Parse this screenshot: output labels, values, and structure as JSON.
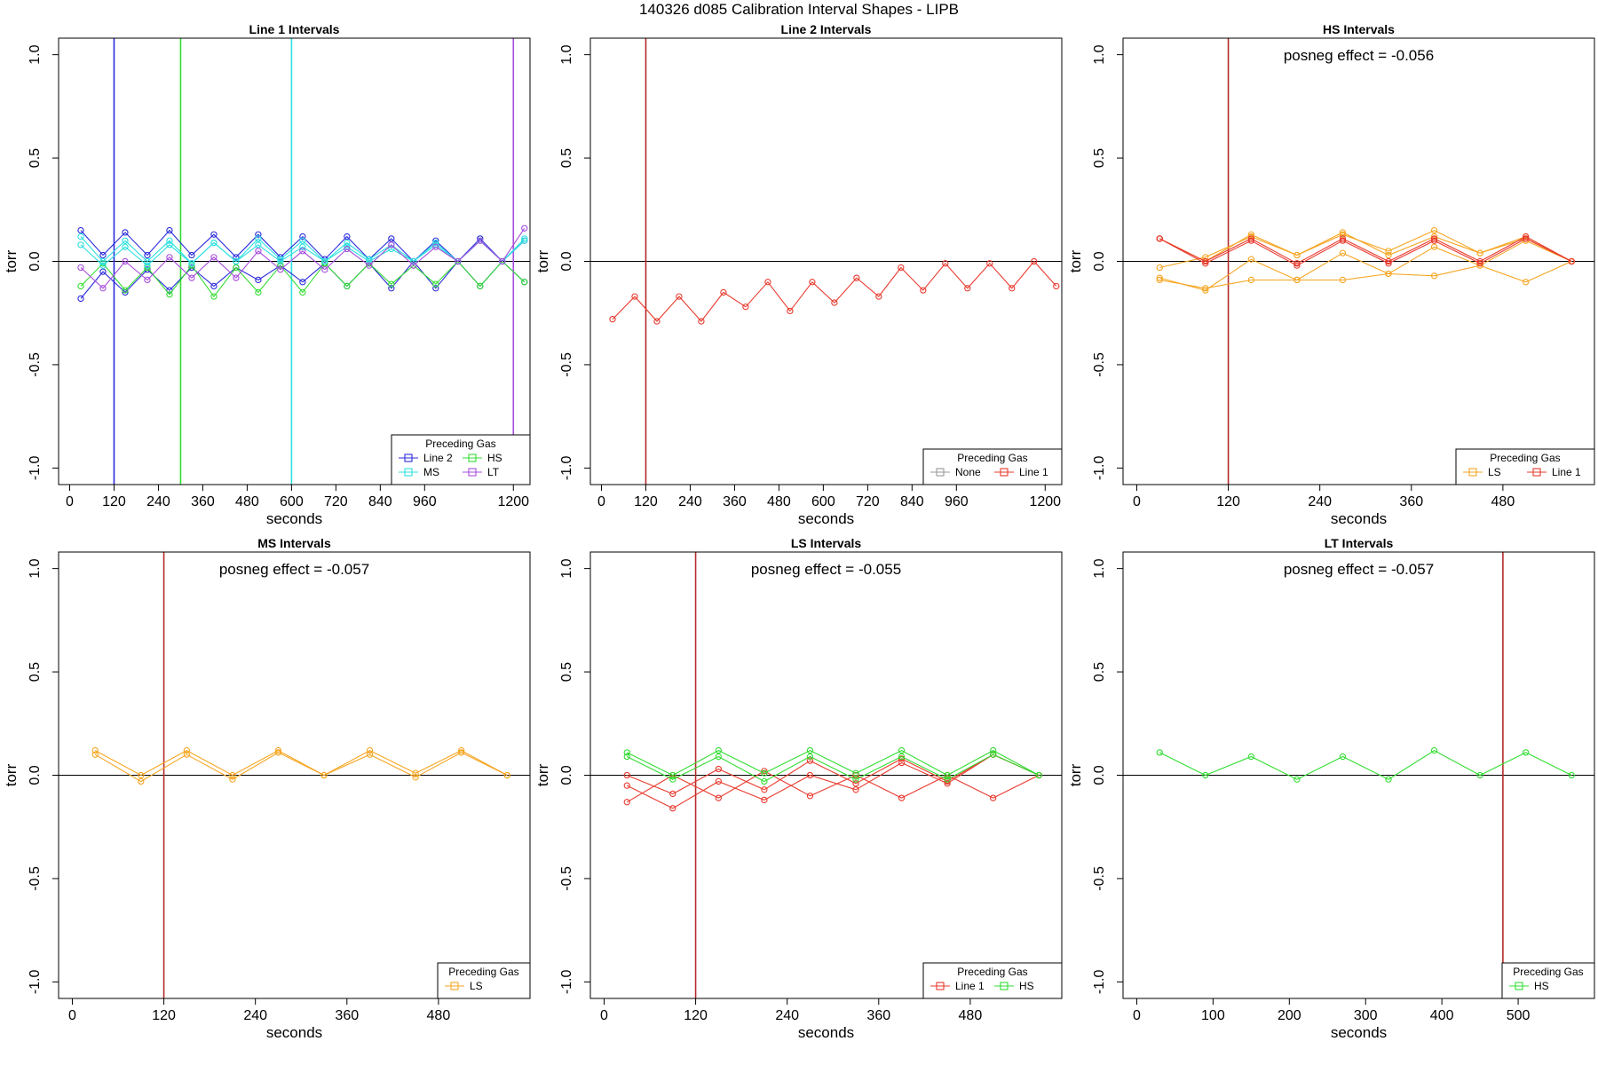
{
  "figure": {
    "title": "140326   d085   Calibration Interval Shapes - LIPB"
  },
  "colors": {
    "Line 2": "#2b2bdc",
    "HS": "#33dd33",
    "MS": "#2ee0e0",
    "LT": "#a64ddc",
    "Line 1": "#e83a2e",
    "LS": "#f5a623",
    "None": "#999999",
    "vline_red": "#b52a2a",
    "zero": "#000000"
  },
  "chart_data": [
    {
      "type": "line",
      "title": "Line 1 Intervals",
      "xlabel": "seconds",
      "ylabel": "torr",
      "xlim": [
        -30,
        1245
      ],
      "ylim": [
        -1.08,
        1.08
      ],
      "xticks": [
        0,
        120,
        240,
        360,
        480,
        600,
        720,
        840,
        960,
        1200
      ],
      "yticks": [
        -1.0,
        -0.5,
        0.0,
        0.5,
        1.0
      ],
      "annotation": "",
      "vlines": [
        {
          "x": 120,
          "color": "Line 2"
        },
        {
          "x": 300,
          "color": "HS"
        },
        {
          "x": 600,
          "color": "MS"
        },
        {
          "x": 1200,
          "color": "LT"
        }
      ],
      "legend": {
        "title": "Preceding Gas",
        "position": "bottom-right",
        "columns": 2,
        "entries": [
          "Line 2",
          "HS",
          "MS",
          "LT"
        ]
      },
      "series": [
        {
          "color": "Line 2",
          "x": [
            30,
            90,
            150,
            210,
            270,
            330,
            390,
            450,
            510,
            570,
            630,
            690,
            750,
            810,
            870,
            930,
            990,
            1050,
            1110,
            1170,
            1230
          ],
          "y": [
            0.15,
            0.03,
            0.14,
            0.03,
            0.15,
            0.03,
            0.13,
            0.02,
            0.13,
            0.02,
            0.12,
            0.01,
            0.12,
            0.01,
            0.11,
            0.0,
            0.1,
            0.0,
            0.11,
            0.0,
            0.1
          ]
        },
        {
          "color": "Line 2",
          "x": [
            30,
            90,
            150,
            210,
            270,
            330,
            390,
            450,
            510,
            570,
            630,
            690,
            750,
            810,
            870,
            930,
            990,
            1050,
            1110,
            1170,
            1230
          ],
          "y": [
            -0.18,
            -0.05,
            -0.15,
            -0.04,
            -0.14,
            -0.03,
            -0.12,
            -0.03,
            -0.09,
            -0.02,
            -0.1,
            -0.01,
            -0.12,
            -0.01,
            -0.13,
            0.0,
            -0.13,
            0.0,
            -0.12,
            0.0,
            -0.1
          ]
        },
        {
          "color": "HS",
          "x": [
            30,
            90,
            150,
            210,
            270,
            330,
            390,
            450,
            510,
            570,
            630,
            690,
            750,
            810,
            870,
            930,
            990,
            1050,
            1110,
            1170,
            1230
          ],
          "y": [
            -0.12,
            -0.01,
            -0.14,
            -0.03,
            -0.16,
            -0.02,
            -0.17,
            -0.03,
            -0.15,
            -0.02,
            -0.15,
            -0.01,
            -0.12,
            -0.01,
            -0.11,
            -0.02,
            -0.11,
            0.0,
            -0.12,
            0.0,
            -0.1
          ]
        },
        {
          "color": "MS",
          "x": [
            30,
            90,
            150,
            210,
            270,
            330,
            390,
            450,
            510,
            570,
            630,
            690,
            750,
            810,
            870,
            930,
            990,
            1050,
            1110,
            1170,
            1230
          ],
          "y": [
            0.08,
            -0.02,
            0.07,
            -0.02,
            0.08,
            -0.01,
            0.09,
            0.0,
            0.08,
            0.0,
            0.07,
            0.0,
            0.07,
            0.0,
            0.06,
            0.0,
            0.09,
            0.0,
            0.1,
            0.0,
            0.11
          ]
        },
        {
          "color": "MS",
          "x": [
            30,
            90,
            150,
            210,
            270,
            330,
            390,
            450,
            510,
            570,
            630,
            690,
            750,
            810,
            870,
            930,
            990,
            1050,
            1110,
            1170,
            1230
          ],
          "y": [
            0.12,
            0.0,
            0.1,
            0.0,
            0.1,
            -0.01,
            0.09,
            0.0,
            0.11,
            0.01,
            0.1,
            0.0,
            0.09,
            0.01,
            0.08,
            0.0,
            0.08,
            0.0,
            0.1,
            0.0,
            0.1
          ]
        },
        {
          "color": "LT",
          "x": [
            30,
            90,
            150,
            210,
            270,
            330,
            390,
            450,
            510,
            570,
            630,
            690,
            750,
            810,
            870,
            930,
            990,
            1050,
            1110,
            1170,
            1230
          ],
          "y": [
            -0.03,
            -0.13,
            0.0,
            -0.09,
            0.02,
            -0.08,
            0.02,
            -0.08,
            0.05,
            -0.04,
            0.05,
            -0.04,
            0.06,
            -0.02,
            0.08,
            -0.02,
            0.07,
            0.0,
            0.1,
            0.0,
            0.16
          ]
        }
      ]
    },
    {
      "type": "line",
      "title": "Line 2 Intervals",
      "xlabel": "seconds",
      "ylabel": "torr",
      "xlim": [
        -30,
        1245
      ],
      "ylim": [
        -1.08,
        1.08
      ],
      "xticks": [
        0,
        120,
        240,
        360,
        480,
        600,
        720,
        840,
        960,
        1200
      ],
      "yticks": [
        -1.0,
        -0.5,
        0.0,
        0.5,
        1.0
      ],
      "annotation": "",
      "vlines": [
        {
          "x": 120,
          "color": "vline_red"
        }
      ],
      "legend": {
        "title": "Preceding Gas",
        "position": "bottom-right",
        "columns": 2,
        "entries": [
          "None",
          "Line 1"
        ]
      },
      "series": [
        {
          "color": "Line 1",
          "x": [
            30,
            90,
            150,
            210,
            270,
            330,
            390,
            450,
            510,
            570,
            630,
            690,
            750,
            810,
            870,
            930,
            990,
            1050,
            1110,
            1170,
            1230
          ],
          "y": [
            -0.28,
            -0.17,
            -0.29,
            -0.17,
            -0.29,
            -0.15,
            -0.22,
            -0.1,
            -0.24,
            -0.1,
            -0.2,
            -0.08,
            -0.17,
            -0.03,
            -0.14,
            -0.01,
            -0.13,
            -0.01,
            -0.13,
            0.0,
            -0.12
          ]
        }
      ]
    },
    {
      "type": "line",
      "title": "HS Intervals",
      "xlabel": "seconds",
      "ylabel": "torr",
      "xlim": [
        -18,
        600
      ],
      "ylim": [
        -1.08,
        1.08
      ],
      "xticks": [
        0,
        120,
        240,
        360,
        480
      ],
      "yticks": [
        -1.0,
        -0.5,
        0.0,
        0.5,
        1.0
      ],
      "annotation": "posneg effect = -0.056",
      "vlines": [
        {
          "x": 120,
          "color": "vline_red"
        }
      ],
      "legend": {
        "title": "Preceding Gas",
        "position": "bottom-right",
        "columns": 2,
        "entries": [
          "LS",
          "Line 1"
        ]
      },
      "series": [
        {
          "color": "LS",
          "x": [
            30,
            90,
            150,
            210,
            270,
            330,
            390,
            450,
            510,
            570
          ],
          "y": [
            -0.03,
            0.02,
            0.12,
            0.03,
            0.13,
            0.05,
            0.15,
            0.04,
            0.11,
            0.0
          ]
        },
        {
          "color": "LS",
          "x": [
            30,
            90,
            150,
            210,
            270,
            330,
            390,
            450,
            510,
            570
          ],
          "y": [
            -0.08,
            -0.14,
            0.01,
            -0.09,
            0.04,
            -0.06,
            0.07,
            -0.02,
            0.1,
            0.0
          ]
        },
        {
          "color": "LS",
          "x": [
            30,
            90,
            150,
            210,
            270,
            330,
            390,
            450,
            510,
            570
          ],
          "y": [
            0.11,
            0.0,
            0.13,
            0.03,
            0.14,
            0.03,
            0.12,
            0.04,
            0.12,
            0.0
          ]
        },
        {
          "color": "LS",
          "x": [
            30,
            90,
            150,
            210,
            270,
            330,
            390,
            450,
            510,
            570
          ],
          "y": [
            -0.09,
            -0.13,
            -0.09,
            -0.09,
            -0.09,
            -0.06,
            -0.07,
            -0.02,
            -0.1,
            0.0
          ]
        },
        {
          "color": "Line 1",
          "x": [
            30,
            90,
            150,
            210,
            270,
            330,
            390,
            450,
            510,
            570
          ],
          "y": [
            0.11,
            0.0,
            0.11,
            -0.01,
            0.11,
            0.0,
            0.11,
            0.0,
            0.12,
            0.0
          ]
        },
        {
          "color": "Line 1",
          "x": [
            30,
            90,
            150,
            210,
            270,
            330,
            390,
            450,
            510,
            570
          ],
          "y": [
            0.11,
            -0.01,
            0.1,
            -0.02,
            0.1,
            -0.01,
            0.1,
            -0.01,
            0.11,
            0.0
          ]
        }
      ]
    },
    {
      "type": "line",
      "title": "MS Intervals",
      "xlabel": "seconds",
      "ylabel": "torr",
      "xlim": [
        -18,
        600
      ],
      "ylim": [
        -1.08,
        1.08
      ],
      "xticks": [
        0,
        120,
        240,
        360,
        480
      ],
      "yticks": [
        -1.0,
        -0.5,
        0.0,
        0.5,
        1.0
      ],
      "annotation": "posneg effect = -0.057",
      "vlines": [
        {
          "x": 120,
          "color": "vline_red"
        }
      ],
      "legend": {
        "title": "Preceding Gas",
        "position": "bottom-right",
        "columns": 1,
        "entries": [
          "LS"
        ]
      },
      "series": [
        {
          "color": "LS",
          "x": [
            30,
            90,
            150,
            210,
            270,
            330,
            390,
            450,
            510,
            570
          ],
          "y": [
            0.12,
            0.0,
            0.12,
            0.0,
            0.12,
            0.0,
            0.12,
            0.01,
            0.12,
            0.0
          ]
        },
        {
          "color": "LS",
          "x": [
            30,
            90,
            150,
            210,
            270,
            330,
            390,
            450,
            510,
            570
          ],
          "y": [
            0.1,
            -0.03,
            0.1,
            -0.02,
            0.11,
            0.0,
            0.1,
            -0.01,
            0.11,
            0.0
          ]
        }
      ]
    },
    {
      "type": "line",
      "title": "LS Intervals",
      "xlabel": "seconds",
      "ylabel": "torr",
      "xlim": [
        -18,
        600
      ],
      "ylim": [
        -1.08,
        1.08
      ],
      "xticks": [
        0,
        120,
        240,
        360,
        480
      ],
      "yticks": [
        -1.0,
        -0.5,
        0.0,
        0.5,
        1.0
      ],
      "annotation": "posneg effect = -0.055",
      "vlines": [
        {
          "x": 120,
          "color": "vline_red"
        }
      ],
      "legend": {
        "title": "Preceding Gas",
        "position": "bottom-right",
        "columns": 2,
        "entries": [
          "Line 1",
          "HS"
        ]
      },
      "series": [
        {
          "color": "Line 1",
          "x": [
            30,
            90,
            150,
            210,
            270,
            330,
            390,
            450,
            510,
            570
          ],
          "y": [
            0.0,
            -0.09,
            0.03,
            -0.07,
            0.07,
            -0.04,
            0.08,
            -0.03,
            0.1,
            0.0
          ]
        },
        {
          "color": "Line 1",
          "x": [
            30,
            90,
            150,
            210,
            270,
            330,
            390,
            450,
            510,
            570
          ],
          "y": [
            -0.05,
            -0.16,
            -0.03,
            -0.12,
            0.0,
            -0.07,
            0.06,
            -0.04,
            0.1,
            0.0
          ]
        },
        {
          "color": "Line 1",
          "x": [
            30,
            90,
            150,
            210,
            270,
            330,
            390,
            450,
            510,
            570
          ],
          "y": [
            -0.13,
            0.0,
            -0.11,
            0.02,
            -0.1,
            0.0,
            -0.11,
            0.0,
            -0.11,
            0.0
          ]
        },
        {
          "color": "HS",
          "x": [
            30,
            90,
            150,
            210,
            270,
            330,
            390,
            450,
            510,
            570
          ],
          "y": [
            0.11,
            0.0,
            0.12,
            0.01,
            0.12,
            0.01,
            0.12,
            0.0,
            0.12,
            0.0
          ]
        },
        {
          "color": "HS",
          "x": [
            30,
            90,
            150,
            210,
            270,
            330,
            390,
            450,
            510,
            570
          ],
          "y": [
            0.09,
            -0.02,
            0.09,
            -0.03,
            0.09,
            -0.02,
            0.09,
            -0.02,
            0.1,
            0.0
          ]
        }
      ]
    },
    {
      "type": "line",
      "title": "LT Intervals",
      "xlabel": "seconds",
      "ylabel": "torr",
      "xlim": [
        -18,
        600
      ],
      "ylim": [
        -1.08,
        1.08
      ],
      "xticks": [
        0,
        100,
        200,
        300,
        400,
        500
      ],
      "yticks": [
        -1.0,
        -0.5,
        0.0,
        0.5,
        1.0
      ],
      "annotation": "posneg effect = -0.057",
      "vlines": [
        {
          "x": 480,
          "color": "vline_red"
        }
      ],
      "legend": {
        "title": "Preceding Gas",
        "position": "bottom-right",
        "columns": 1,
        "entries": [
          "HS"
        ]
      },
      "series": [
        {
          "color": "HS",
          "x": [
            30,
            90,
            150,
            210,
            270,
            330,
            390,
            450,
            510,
            570
          ],
          "y": [
            0.11,
            0.0,
            0.09,
            -0.02,
            0.09,
            -0.02,
            0.12,
            0.0,
            0.11,
            0.0
          ]
        }
      ]
    }
  ]
}
